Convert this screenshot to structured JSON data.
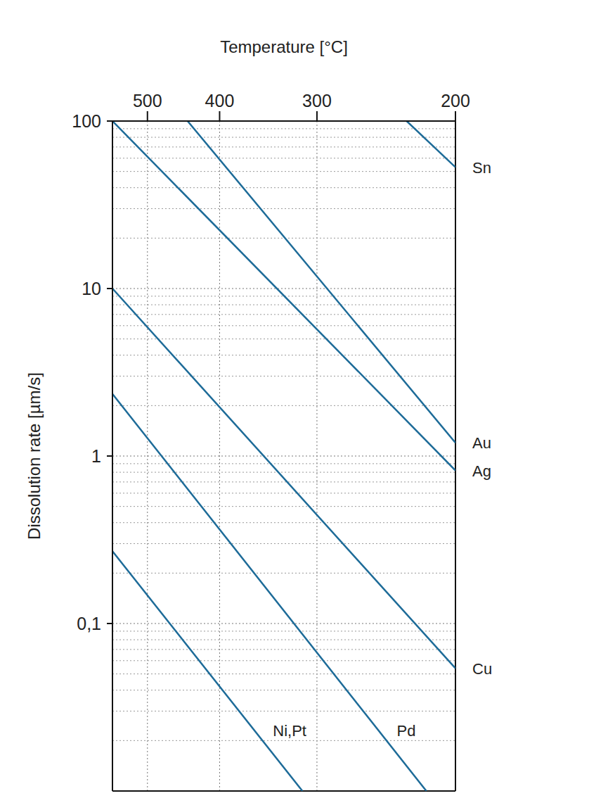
{
  "chart_data": {
    "type": "line",
    "x_label": "Temperature [°C]",
    "y_label": "Dissolution rate [µm/s]",
    "xlim": [
      560,
      200
    ],
    "xticks": [
      500,
      400,
      300,
      200
    ],
    "ylim": [
      0.01,
      100
    ],
    "yticks": [
      {
        "value": 0.1,
        "label": "0,1"
      },
      1,
      10,
      100
    ],
    "log": "y",
    "grid": true,
    "series": [
      {
        "name": "Sn",
        "color": "#1d6b98",
        "x": [
          231,
          200
        ],
        "values": [
          100,
          53
        ]
      },
      {
        "name": "Au",
        "color": "#1d6b98",
        "x": [
          441,
          200
        ],
        "values": [
          100,
          1.2
        ]
      },
      {
        "name": "Ag",
        "color": "#1d6b98",
        "x": [
          560,
          200
        ],
        "values": [
          100,
          0.82
        ]
      },
      {
        "name": "Cu",
        "color": "#1d6b98",
        "x": [
          560,
          200
        ],
        "values": [
          10,
          0.054
        ]
      },
      {
        "name": "Pd",
        "color": "#1d6b98",
        "x": [
          560,
          218
        ],
        "values": [
          2.35,
          0.01
        ]
      },
      {
        "name": "Ni,Pt",
        "color": "#1d6b98",
        "x": [
          560,
          313
        ],
        "values": [
          0.27,
          0.01
        ]
      }
    ]
  }
}
